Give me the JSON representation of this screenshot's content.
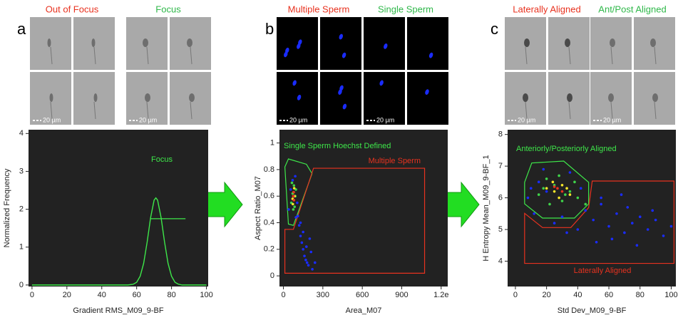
{
  "panels": [
    {
      "letter": "a",
      "groups": [
        {
          "title": "Out of Focus",
          "color": "#e8321f",
          "scale_bar": "20 µm"
        },
        {
          "title": "Focus",
          "color": "#2fb84a",
          "scale_bar": "20 µm"
        }
      ]
    },
    {
      "letter": "b",
      "groups": [
        {
          "title": "Multiple Sperm",
          "color": "#e8321f",
          "scale_bar": "20 µm"
        },
        {
          "title": "Single Sperm",
          "color": "#2fb84a",
          "scale_bar": "20 µm"
        }
      ]
    },
    {
      "letter": "c",
      "groups": [
        {
          "title": "Laterally Aligned",
          "color": "#e8321f",
          "scale_bar": "20 µm"
        },
        {
          "title": "Ant/Post Aligned",
          "color": "#2fb84a",
          "scale_bar": "20 µm"
        }
      ]
    }
  ],
  "chart_data": [
    {
      "type": "line",
      "x_label": "Gradient RMS_M09_9-BF",
      "y_label": "Normalized Frequency",
      "x": [
        0,
        50,
        55,
        58,
        60,
        62,
        64,
        66,
        68,
        70,
        71,
        72,
        74,
        76,
        78,
        80,
        82,
        84,
        86,
        90,
        100
      ],
      "values": [
        0,
        0,
        0,
        0.02,
        0.07,
        0.23,
        0.57,
        1.13,
        1.78,
        2.24,
        2.3,
        2.24,
        1.78,
        1.13,
        0.57,
        0.23,
        0.07,
        0.02,
        0,
        0,
        0
      ],
      "color": "#3ee84a",
      "gate_line": {
        "x": [
          68,
          88
        ],
        "y": 1.75,
        "color": "#3ee84a"
      },
      "annotations": [
        {
          "text": "Focus",
          "color": "#3ee84a"
        }
      ],
      "xlim": [
        -2,
        101
      ],
      "ylim": [
        -0.04,
        4.1
      ],
      "xticks": [
        0,
        20,
        40,
        60,
        80,
        100
      ],
      "yticks": [
        0,
        1,
        2,
        3,
        4
      ]
    },
    {
      "type": "scatter",
      "x_label": "Area_M07",
      "y_label": "Aspect Ratio_M07",
      "series": [
        {
          "color": "#1a2cff",
          "x": [
            40,
            55,
            70,
            90,
            110,
            120,
            130,
            140,
            150,
            160,
            170,
            180,
            190,
            200,
            210,
            220,
            240,
            130,
            150,
            175,
            105,
            95
          ],
          "values": [
            0.5,
            0.65,
            0.72,
            0.75,
            0.45,
            0.38,
            0.3,
            0.25,
            0.2,
            0.15,
            0.12,
            0.1,
            0.08,
            0.28,
            0.18,
            0.05,
            0.1,
            0.4,
            0.33,
            0.22,
            0.55,
            0.44
          ]
        },
        {
          "color": "#3fd44a",
          "x": [
            60,
            70,
            80,
            90,
            75,
            85,
            65,
            95
          ],
          "values": [
            0.55,
            0.62,
            0.68,
            0.6,
            0.5,
            0.52,
            0.7,
            0.65
          ]
        },
        {
          "color": "#f5e62a",
          "x": [
            70,
            78,
            85,
            72,
            82
          ],
          "values": [
            0.58,
            0.63,
            0.6,
            0.54,
            0.66
          ]
        },
        {
          "color": "#e8321f",
          "x": [
            75,
            80,
            78
          ],
          "values": [
            0.6,
            0.57,
            0.63
          ]
        }
      ],
      "gates": [
        {
          "color": "#3ee84a",
          "x": [
            11,
            38,
            76,
            218,
            175,
            38
          ],
          "y": [
            0.82,
            0.39,
            0.38,
            0.77,
            0.84,
            0.88
          ]
        },
        {
          "color": "#e8321f",
          "x": [
            11,
            11,
            1074,
            1074,
            229,
            76
          ],
          "y": [
            0.35,
            0.02,
            0.02,
            0.81,
            0.81,
            0.35
          ]
        }
      ],
      "annotations": [
        {
          "text": "Single Sperm Hoechst Defined",
          "color": "#3ee84a"
        },
        {
          "text": "Multiple Sperm",
          "color": "#e8321f"
        }
      ],
      "xlim": [
        -30,
        1250
      ],
      "ylim": [
        -0.08,
        1.1
      ],
      "xticks": [
        0,
        300,
        600,
        900,
        {
          "value": 1200,
          "label": "1.2e"
        }
      ],
      "yticks": [
        0,
        0.2,
        0.4,
        0.6,
        0.8,
        1
      ]
    },
    {
      "type": "scatter",
      "x_label": "Std Dev_M09_9-BF",
      "y_label": "H Entropy Mean_M09_9-BF_1",
      "series": [
        {
          "color": "#1a2cff",
          "x": [
            8,
            12,
            15,
            20,
            25,
            30,
            35,
            40,
            45,
            50,
            55,
            60,
            65,
            70,
            75,
            80,
            85,
            90,
            95,
            100,
            42,
            55,
            62,
            72,
            88,
            33,
            52,
            68,
            78,
            10,
            18
          ],
          "values": [
            6.0,
            5.5,
            6.5,
            6.2,
            5.2,
            5.4,
            6.8,
            5.0,
            5.6,
            5.3,
            5.8,
            5.1,
            5.5,
            4.9,
            5.2,
            5.4,
            5.0,
            5.3,
            4.8,
            5.1,
            6.3,
            6.0,
            4.7,
            5.7,
            5.6,
            4.9,
            4.6,
            6.1,
            4.5,
            6.3,
            6.9
          ]
        },
        {
          "color": "#3fd44a",
          "x": [
            15,
            20,
            25,
            30,
            35,
            40,
            22,
            28,
            38,
            45,
            18,
            32
          ],
          "values": [
            6.1,
            6.6,
            6.4,
            5.9,
            6.2,
            6.0,
            5.8,
            6.7,
            6.5,
            5.8,
            6.3,
            6.1
          ]
        },
        {
          "color": "#f5e62a",
          "x": [
            20,
            25,
            30,
            35,
            28,
            33,
            24
          ],
          "values": [
            6.3,
            6.2,
            6.4,
            6.1,
            6.0,
            6.3,
            6.5
          ]
        },
        {
          "color": "#e8321f",
          "x": [
            27,
            30,
            25
          ],
          "values": [
            6.3,
            6.2,
            6.35
          ]
        }
      ],
      "gates": [
        {
          "color": "#3ee84a",
          "x": [
            5.9,
            10.5,
            31,
            47,
            47,
            37.9,
            17.4,
            5.9
          ],
          "y": [
            6.49,
            7.1,
            7.16,
            6.49,
            5.81,
            5.36,
            5.36,
            5.81
          ]
        },
        {
          "color": "#e8321f",
          "x": [
            5.9,
            5.9,
            101.8,
            101.8,
            49.3,
            47,
            35.6,
            17.4
          ],
          "y": [
            5.51,
            3.93,
            3.93,
            6.53,
            6.53,
            5.69,
            5.06,
            5.06
          ]
        }
      ],
      "annotations": [
        {
          "text": "Anteriorly/Posteriorly Aligned",
          "color": "#3ee84a"
        },
        {
          "text": "Laterally Aligned",
          "color": "#e8321f"
        }
      ],
      "xlim": [
        -5,
        103
      ],
      "ylim": [
        3.2,
        8.15
      ],
      "xticks": [
        0,
        20,
        40,
        60,
        80,
        100
      ],
      "yticks": [
        4,
        5,
        6,
        7,
        8
      ]
    }
  ]
}
